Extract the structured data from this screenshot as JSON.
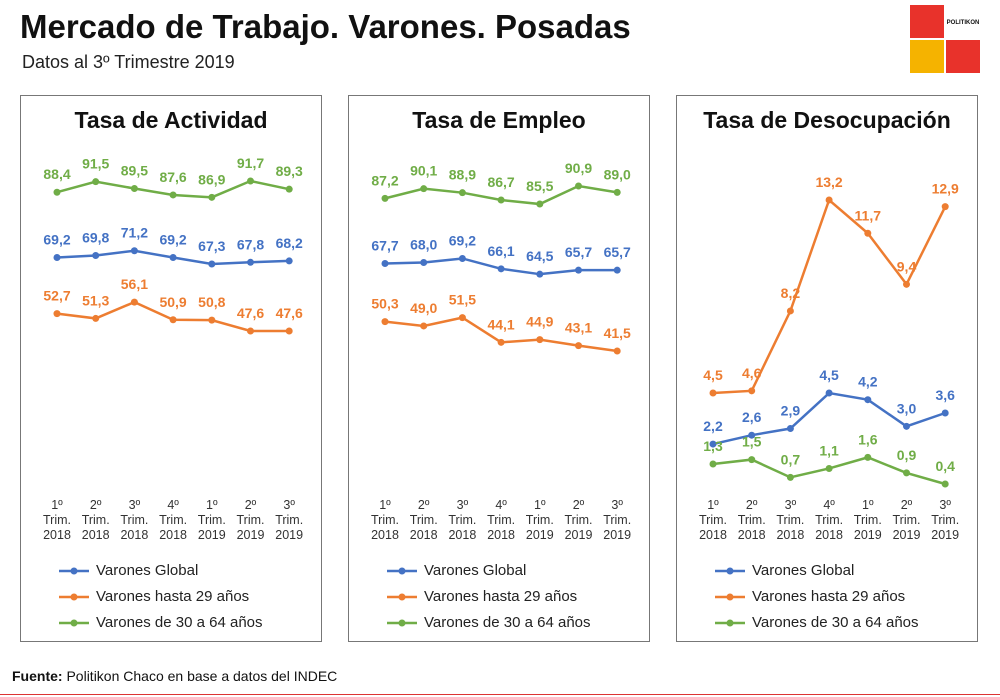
{
  "header": {
    "title": "Mercado de Trabajo. Varones. Posadas",
    "subtitle": "Datos al 3º Trimestre 2019",
    "logo": "POLITIKON"
  },
  "footer": {
    "label": "Fuente:",
    "text": "Politikon Chaco en base a datos del INDEC"
  },
  "chart_data": [
    {
      "type": "line",
      "title": "Tasa de Actividad",
      "categories": [
        "1º Trim. 2018",
        "2º Trim. 2018",
        "3º Trim. 2018",
        "4º Trim. 2018",
        "1º Trim. 2019",
        "2º Trim. 2019",
        "3º Trim. 2019"
      ],
      "series": [
        {
          "name": "Varones Global",
          "color": "#4472c4",
          "values": [
            69.2,
            69.8,
            71.2,
            69.2,
            67.3,
            67.8,
            68.2
          ],
          "value_labels": [
            "69,2",
            "69,8",
            "71,2",
            "69,2",
            "67,3",
            "67,8",
            "68,2"
          ]
        },
        {
          "name": "Varones hasta 29 años",
          "color": "#ed7d31",
          "values": [
            52.7,
            51.3,
            56.1,
            50.9,
            50.8,
            47.6,
            47.6
          ],
          "value_labels": [
            "52,7",
            "51,3",
            "56,1",
            "50,9",
            "50,8",
            "47,6",
            "47,6"
          ]
        },
        {
          "name": "Varones de 30 a 64 años",
          "color": "#70ad47",
          "values": [
            88.4,
            91.5,
            89.5,
            87.6,
            86.9,
            91.7,
            89.3
          ],
          "value_labels": [
            "88,4",
            "91,5",
            "89,5",
            "87,6",
            "86,9",
            "91,7",
            "89,3"
          ]
        }
      ]
    },
    {
      "type": "line",
      "title": "Tasa de Empleo",
      "categories": [
        "1º Trim. 2018",
        "2º Trim. 2018",
        "3º Trim. 2018",
        "4º Trim. 2018",
        "1º Trim. 2019",
        "2º Trim. 2019",
        "3º Trim. 2019"
      ],
      "series": [
        {
          "name": "Varones Global",
          "color": "#4472c4",
          "values": [
            67.7,
            68.0,
            69.2,
            66.1,
            64.5,
            65.7,
            65.7
          ],
          "value_labels": [
            "67,7",
            "68,0",
            "69,2",
            "66,1",
            "64,5",
            "65,7",
            "65,7"
          ]
        },
        {
          "name": "Varones hasta 29 años",
          "color": "#ed7d31",
          "values": [
            50.3,
            49.0,
            51.5,
            44.1,
            44.9,
            43.1,
            41.5
          ],
          "value_labels": [
            "50,3",
            "49,0",
            "51,5",
            "44,1",
            "44,9",
            "43,1",
            "41,5"
          ]
        },
        {
          "name": "Varones de 30 a 64 años",
          "color": "#70ad47",
          "values": [
            87.2,
            90.1,
            88.9,
            86.7,
            85.5,
            90.9,
            89.0
          ],
          "value_labels": [
            "87,2",
            "90,1",
            "88,9",
            "86,7",
            "85,5",
            "90,9",
            "89,0"
          ]
        }
      ]
    },
    {
      "type": "line",
      "title": "Tasa de Desocupación",
      "categories": [
        "1º Trim. 2018",
        "2º Trim. 2018",
        "3º Trim. 2018",
        "4º Trim. 2018",
        "1º Trim. 2019",
        "2º Trim. 2019",
        "3º Trim. 2019"
      ],
      "series": [
        {
          "name": "Varones Global",
          "color": "#4472c4",
          "values": [
            2.2,
            2.6,
            2.9,
            4.5,
            4.2,
            3.0,
            3.6
          ],
          "value_labels": [
            "2,2",
            "2,6",
            "2,9",
            "4,5",
            "4,2",
            "3,0",
            "3,6"
          ]
        },
        {
          "name": "Varones hasta 29 años",
          "color": "#ed7d31",
          "values": [
            4.5,
            4.6,
            8.2,
            13.2,
            11.7,
            9.4,
            12.9
          ],
          "value_labels": [
            "4,5",
            "4,6",
            "8,2",
            "13,2",
            "11,7",
            "9,4",
            "12,9"
          ]
        },
        {
          "name": "Varones de 30 a 64 años",
          "color": "#70ad47",
          "values": [
            1.3,
            1.5,
            0.7,
            1.1,
            1.6,
            0.9,
            0.4
          ],
          "value_labels": [
            "1,3",
            "1,5",
            "0,7",
            "1,1",
            "1,6",
            "0,9",
            "0,4"
          ]
        }
      ]
    }
  ]
}
